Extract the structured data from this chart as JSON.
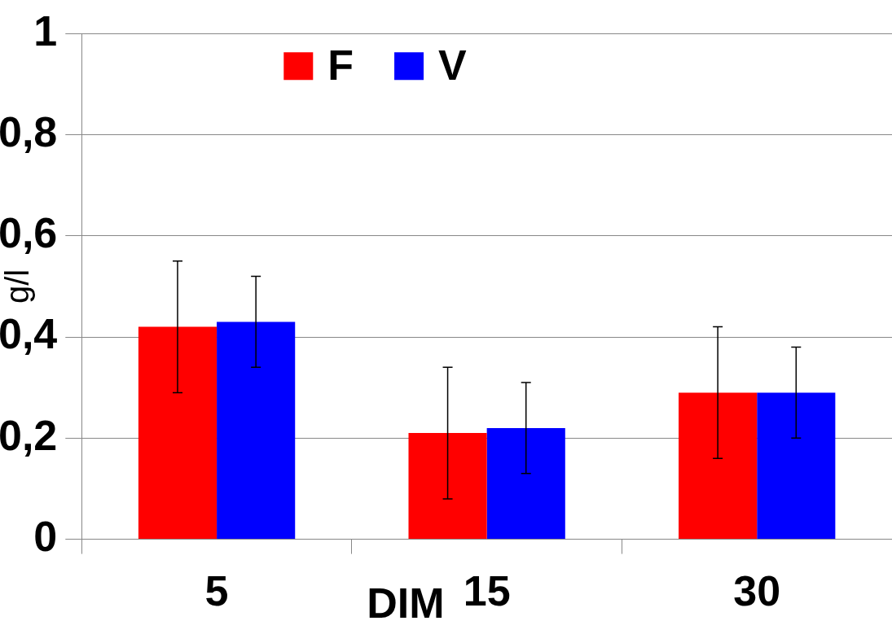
{
  "chart_data": {
    "type": "bar",
    "xlabel": "DIM",
    "ylabel": "g/l",
    "categories": [
      "5",
      "15",
      "30"
    ],
    "series": [
      {
        "name": "F",
        "color": "#ff0000",
        "values": [
          0.42,
          0.21,
          0.29
        ],
        "errors": [
          0.13,
          0.13,
          0.13
        ]
      },
      {
        "name": "V",
        "color": "#0000ff",
        "values": [
          0.43,
          0.22,
          0.29
        ],
        "errors": [
          0.09,
          0.09,
          0.09
        ]
      }
    ],
    "ylim": [
      0,
      1
    ],
    "yticks": [
      0,
      {
        "value": 0.2,
        "label": "0,2"
      },
      {
        "value": 0.4,
        "label": "0,4"
      },
      {
        "value": 0.6,
        "label": "0,6"
      },
      {
        "value": 0.8,
        "label": "0,8"
      },
      1
    ],
    "grid": "y",
    "legend": "top"
  }
}
